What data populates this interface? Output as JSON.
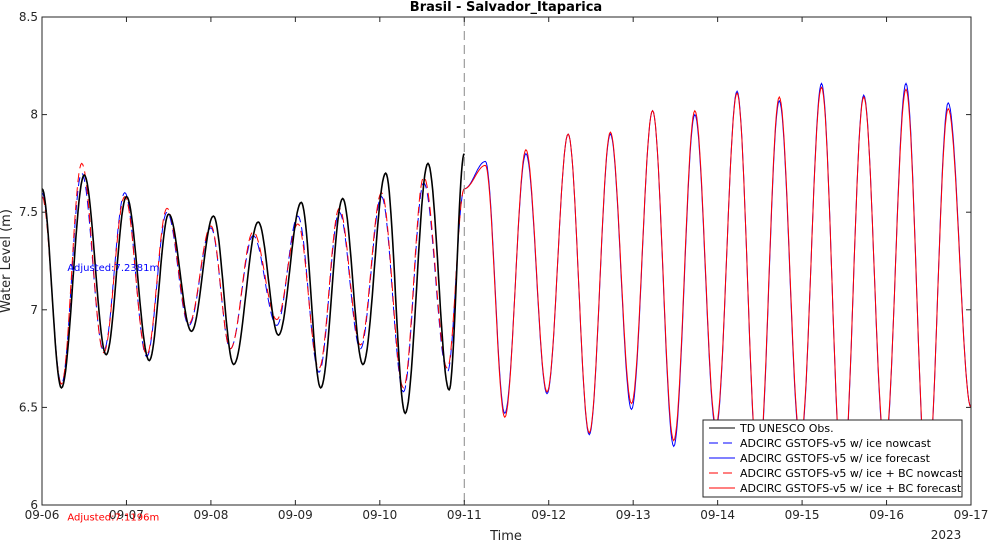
{
  "chart_data": {
    "type": "line",
    "title": "Brasil - Salvador_Itaparica",
    "xlabel": "Time",
    "ylabel": "Water Level (m)",
    "xlim": [
      0,
      11
    ],
    "ylim": [
      6,
      8.5
    ],
    "x_ticks": [
      {
        "value": 0,
        "label": "09-06"
      },
      {
        "value": 1,
        "label": "09-07"
      },
      {
        "value": 2,
        "label": "09-08"
      },
      {
        "value": 3,
        "label": "09-09"
      },
      {
        "value": 4,
        "label": "09-10"
      },
      {
        "value": 5,
        "label": "09-11"
      },
      {
        "value": 6,
        "label": "09-12"
      },
      {
        "value": 7,
        "label": "09-13"
      },
      {
        "value": 8,
        "label": "09-14"
      },
      {
        "value": 9,
        "label": "09-15"
      },
      {
        "value": 10,
        "label": "09-16"
      },
      {
        "value": 11,
        "label": "09-17"
      }
    ],
    "x_year_label": "2023",
    "y_ticks": [
      {
        "value": 6,
        "label": "6"
      },
      {
        "value": 6.5,
        "label": "6.5"
      },
      {
        "value": 7,
        "label": "7"
      },
      {
        "value": 7.5,
        "label": "7.5"
      },
      {
        "value": 8,
        "label": "8"
      },
      {
        "value": 8.5,
        "label": "8.5"
      }
    ],
    "nowcast_forecast_divider_x": 5,
    "legend_position": "bottom-right",
    "annotations": [
      {
        "text": "Adjusted:7.2381m",
        "x": 0.3,
        "y": 7.22,
        "color": "#0000ff"
      },
      {
        "text": "Adjusted:7.1196m",
        "x": 0.3,
        "y": 5.94,
        "color": "#ff0000"
      }
    ],
    "extrema_units": "high/low water level in m at day-offset x",
    "series": [
      {
        "name": "TD UNESCO Obs.",
        "color": "#000000",
        "dash": "solid",
        "x_range": [
          0,
          5
        ],
        "extrema": [
          [
            0,
            7.62
          ],
          [
            0.23,
            6.6
          ],
          [
            0.5,
            7.69
          ],
          [
            0.76,
            6.77
          ],
          [
            1.0,
            7.58
          ],
          [
            1.27,
            6.74
          ],
          [
            1.5,
            7.49
          ],
          [
            1.77,
            6.89
          ],
          [
            2.03,
            7.48
          ],
          [
            2.27,
            6.72
          ],
          [
            2.56,
            7.45
          ],
          [
            2.8,
            6.87
          ],
          [
            3.07,
            7.55
          ],
          [
            3.3,
            6.6
          ],
          [
            3.56,
            7.57
          ],
          [
            3.8,
            6.72
          ],
          [
            4.07,
            7.7
          ],
          [
            4.3,
            6.47
          ],
          [
            4.57,
            7.75
          ],
          [
            4.82,
            6.59
          ],
          [
            5.0,
            7.8
          ]
        ]
      },
      {
        "name": "ADCIRC GSTOFS-v5 w/ ice nowcast",
        "color": "#0000ff",
        "dash": "dashed",
        "x_range": [
          0,
          5
        ],
        "extrema": [
          [
            0,
            7.6
          ],
          [
            0.23,
            6.62
          ],
          [
            0.47,
            7.7
          ],
          [
            0.73,
            6.79
          ],
          [
            0.98,
            7.6
          ],
          [
            1.24,
            6.76
          ],
          [
            1.48,
            7.5
          ],
          [
            1.74,
            6.92
          ],
          [
            2.0,
            7.42
          ],
          [
            2.23,
            6.8
          ],
          [
            2.5,
            7.38
          ],
          [
            2.78,
            6.92
          ],
          [
            3.03,
            7.48
          ],
          [
            3.28,
            6.68
          ],
          [
            3.52,
            7.5
          ],
          [
            3.77,
            6.8
          ],
          [
            4.02,
            7.58
          ],
          [
            4.28,
            6.58
          ],
          [
            4.52,
            7.65
          ],
          [
            4.8,
            6.68
          ],
          [
            5.0,
            7.62
          ]
        ]
      },
      {
        "name": "ADCIRC GSTOFS-v5 w/ ice forecast",
        "color": "#0000ff",
        "dash": "solid",
        "x_range": [
          5,
          11
        ],
        "extrema": [
          [
            5.0,
            7.62
          ],
          [
            5.25,
            7.76
          ],
          [
            5.48,
            6.47
          ],
          [
            5.73,
            7.8
          ],
          [
            5.98,
            6.57
          ],
          [
            6.23,
            7.9
          ],
          [
            6.48,
            6.36
          ],
          [
            6.73,
            7.9
          ],
          [
            6.98,
            6.49
          ],
          [
            7.23,
            8.02
          ],
          [
            7.48,
            6.3
          ],
          [
            7.73,
            8.0
          ],
          [
            7.98,
            6.39
          ],
          [
            8.23,
            8.12
          ],
          [
            8.48,
            6.16
          ],
          [
            8.73,
            8.07
          ],
          [
            8.98,
            6.31
          ],
          [
            9.23,
            8.16
          ],
          [
            9.48,
            6.1
          ],
          [
            9.73,
            8.1
          ],
          [
            9.98,
            6.28
          ],
          [
            10.23,
            8.16
          ],
          [
            10.48,
            6.09
          ],
          [
            10.73,
            8.06
          ],
          [
            11.0,
            6.5
          ]
        ]
      },
      {
        "name": "ADCIRC GSTOFS-v5 w/ ice + BC nowcast",
        "color": "#ff0000",
        "dash": "dashed",
        "x_range": [
          0,
          5
        ],
        "extrema": [
          [
            0,
            7.58
          ],
          [
            0.23,
            6.62
          ],
          [
            0.47,
            7.75
          ],
          [
            0.73,
            6.78
          ],
          [
            0.98,
            7.58
          ],
          [
            1.24,
            6.77
          ],
          [
            1.48,
            7.52
          ],
          [
            1.74,
            6.93
          ],
          [
            2.0,
            7.43
          ],
          [
            2.23,
            6.8
          ],
          [
            2.5,
            7.4
          ],
          [
            2.78,
            6.95
          ],
          [
            3.03,
            7.44
          ],
          [
            3.28,
            6.7
          ],
          [
            3.52,
            7.52
          ],
          [
            3.77,
            6.82
          ],
          [
            4.02,
            7.6
          ],
          [
            4.28,
            6.6
          ],
          [
            4.52,
            7.68
          ],
          [
            4.8,
            6.7
          ],
          [
            5.0,
            7.62
          ]
        ]
      },
      {
        "name": "ADCIRC GSTOFS-v5 w/ ice + BC forecast",
        "color": "#ff0000",
        "dash": "solid",
        "x_range": [
          5,
          11
        ],
        "extrema": [
          [
            5.0,
            7.62
          ],
          [
            5.25,
            7.74
          ],
          [
            5.48,
            6.45
          ],
          [
            5.73,
            7.82
          ],
          [
            5.98,
            6.58
          ],
          [
            6.23,
            7.9
          ],
          [
            6.48,
            6.37
          ],
          [
            6.73,
            7.91
          ],
          [
            6.98,
            6.52
          ],
          [
            7.23,
            8.02
          ],
          [
            7.48,
            6.33
          ],
          [
            7.73,
            8.02
          ],
          [
            7.98,
            6.41
          ],
          [
            8.23,
            8.11
          ],
          [
            8.48,
            6.18
          ],
          [
            8.73,
            8.09
          ],
          [
            8.98,
            6.33
          ],
          [
            9.23,
            8.14
          ],
          [
            9.48,
            6.12
          ],
          [
            9.73,
            8.09
          ],
          [
            9.98,
            6.3
          ],
          [
            10.23,
            8.13
          ],
          [
            10.48,
            6.11
          ],
          [
            10.73,
            8.03
          ],
          [
            11.0,
            6.5
          ]
        ]
      }
    ]
  }
}
